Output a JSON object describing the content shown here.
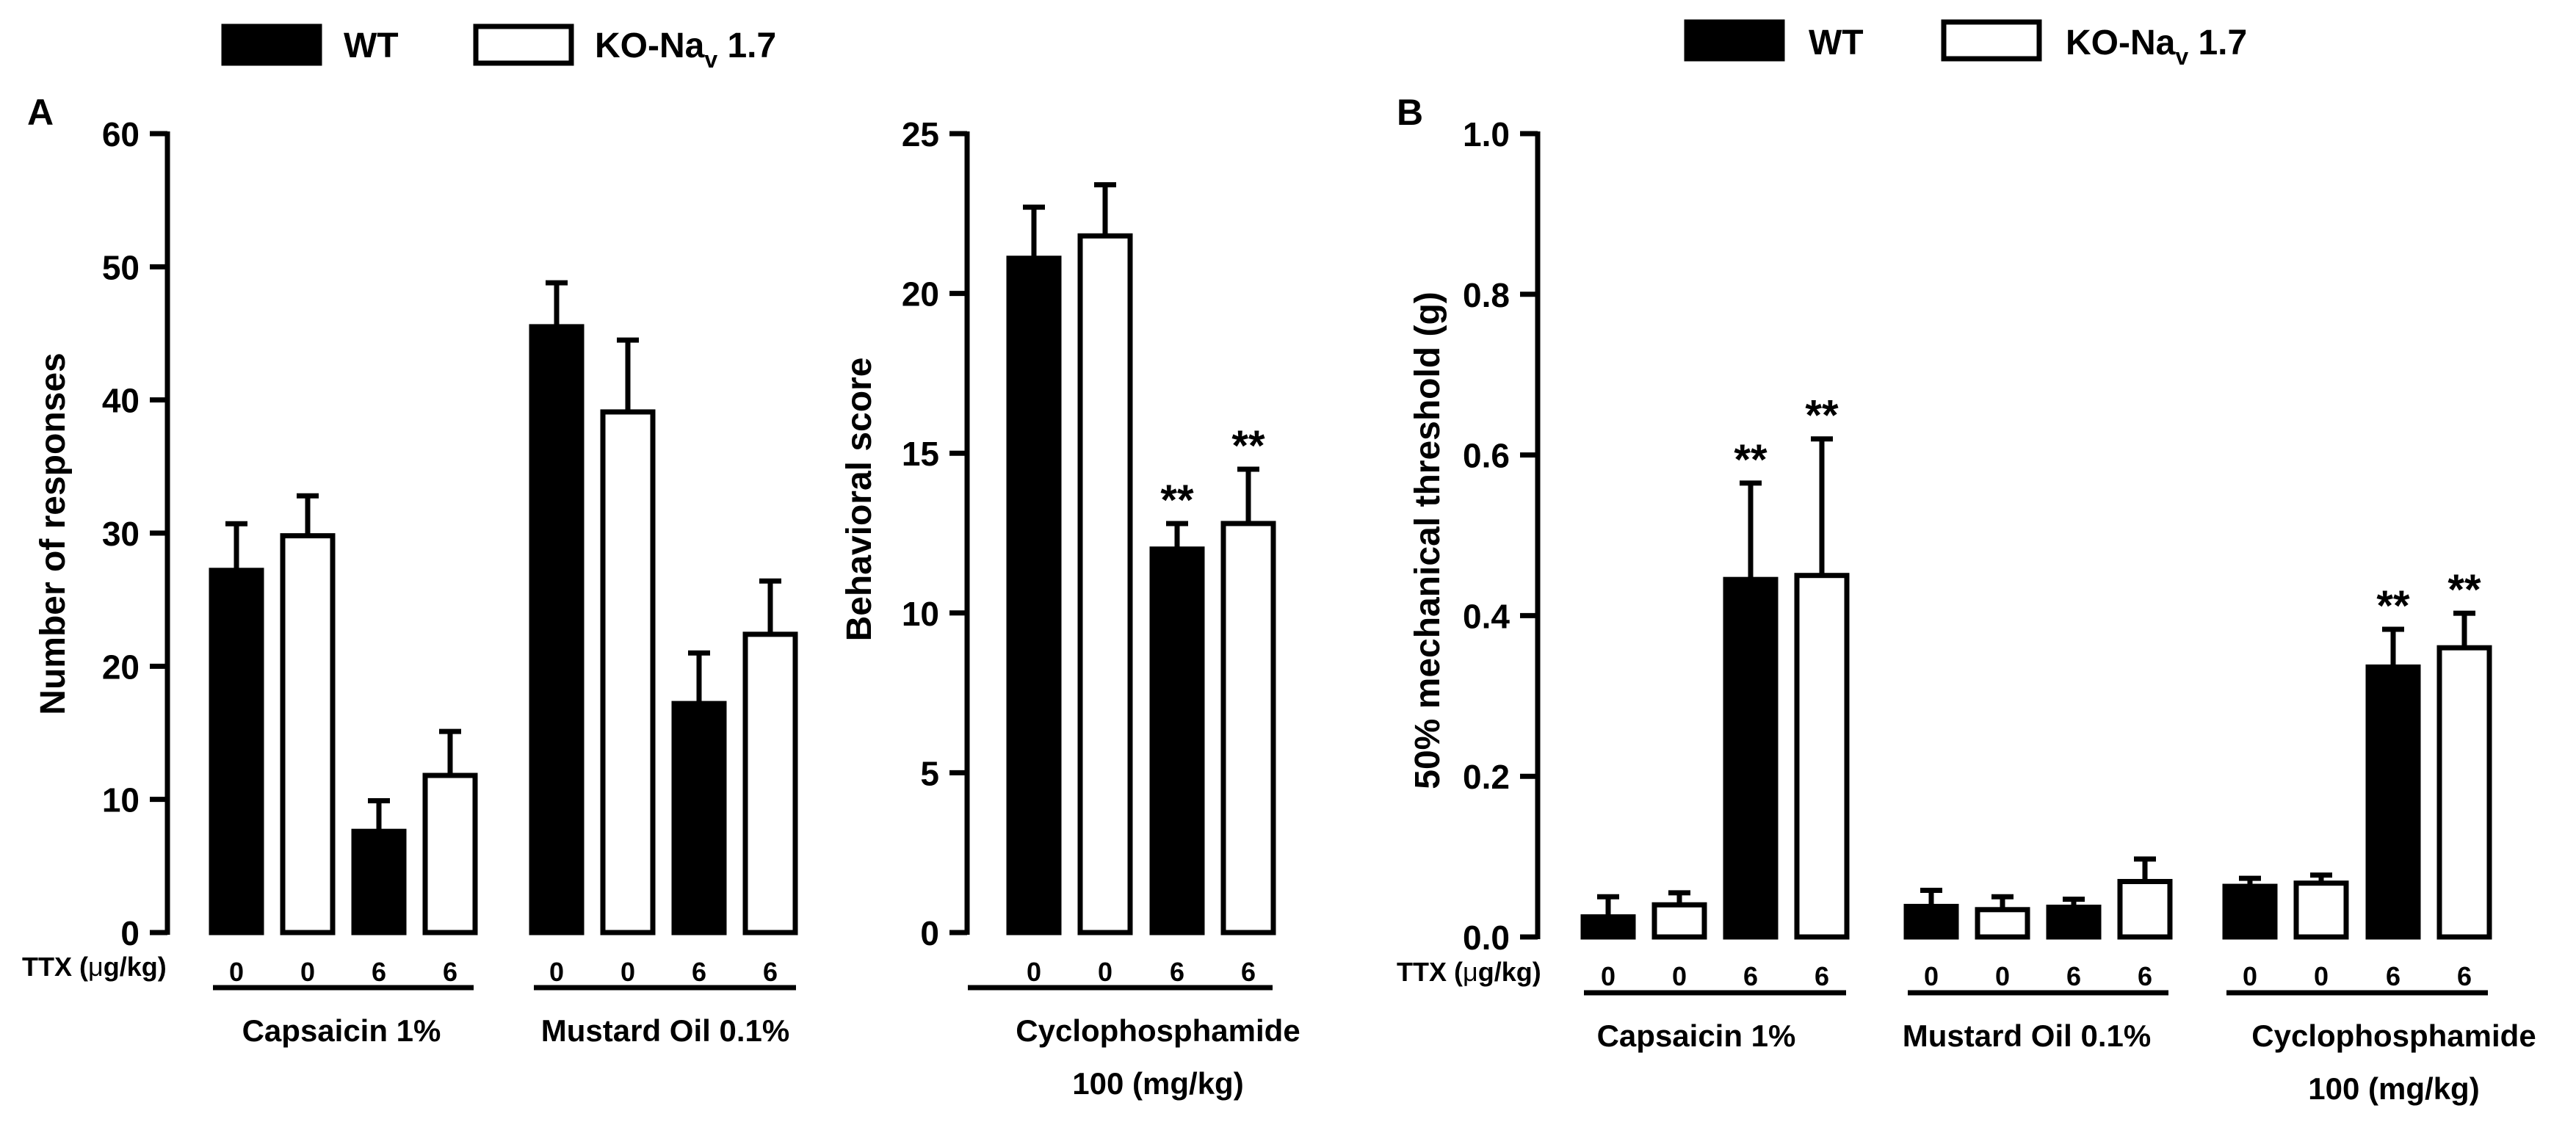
{
  "legend_items": [
    {
      "label": "WT",
      "fill": "#000000"
    },
    {
      "label": "KO-Na",
      "sub": "v",
      "rest": " 1.7",
      "fill": "#ffffff"
    }
  ],
  "ttx_prefix": "TTX (",
  "ttx_mu": "μ",
  "ttx_suffix": "g/kg)",
  "chart_data": [
    {
      "panel": "A",
      "type": "bar",
      "ylabel": "Number of responses",
      "ylim": [
        0,
        60
      ],
      "yticks": [
        0,
        10,
        20,
        30,
        40,
        50,
        60
      ],
      "groups": [
        {
          "label": [
            "Capsaicin 1%"
          ],
          "ttx": [
            "0",
            "0",
            "6",
            "6"
          ],
          "series": [
            "WT",
            "KO-Nav 1.7",
            "WT",
            "KO-Nav 1.7"
          ],
          "values": [
            27.2,
            29.8,
            7.6,
            11.8
          ],
          "errors": [
            3.5,
            3.0,
            2.3,
            3.3
          ],
          "sig": [
            "",
            "",
            "",
            ""
          ]
        },
        {
          "label": [
            "Mustard Oil 0.1%"
          ],
          "ttx": [
            "0",
            "0",
            "6",
            "6"
          ],
          "series": [
            "WT",
            "KO-Nav 1.7",
            "WT",
            "KO-Nav 1.7"
          ],
          "values": [
            45.5,
            39.1,
            17.2,
            22.4
          ],
          "errors": [
            3.3,
            5.4,
            3.8,
            4.0
          ],
          "sig": [
            "",
            "",
            "",
            ""
          ]
        }
      ]
    },
    {
      "panel": "",
      "type": "bar",
      "ylabel": "Behavioral score",
      "ylim": [
        0,
        25
      ],
      "yticks": [
        0,
        5,
        10,
        15,
        20,
        25
      ],
      "groups": [
        {
          "label": [
            "Cyclophosphamide",
            "100 (mg/kg)"
          ],
          "ttx": [
            "0",
            "0",
            "6",
            "6"
          ],
          "series": [
            "WT",
            "KO-Nav 1.7",
            "WT",
            "KO-Nav 1.7"
          ],
          "values": [
            21.1,
            21.8,
            12.0,
            12.8
          ],
          "errors": [
            1.6,
            1.6,
            0.8,
            1.7
          ],
          "sig": [
            "",
            "",
            "**",
            "**"
          ]
        }
      ]
    },
    {
      "panel": "B",
      "type": "bar",
      "ylabel": "50% mechanical threshold (g)",
      "ylim": [
        0,
        1.0
      ],
      "yticks": [
        "0.0",
        "0.2",
        "0.4",
        "0.6",
        "0.8",
        "1.0"
      ],
      "groups": [
        {
          "label": [
            "Capsaicin 1%"
          ],
          "ttx": [
            "0",
            "0",
            "6",
            "6"
          ],
          "series": [
            "WT",
            "KO-Nav 1.7",
            "WT",
            "KO-Nav 1.7"
          ],
          "values": [
            0.025,
            0.04,
            0.445,
            0.45
          ],
          "errors": [
            0.025,
            0.015,
            0.12,
            0.17
          ],
          "sig": [
            "",
            "",
            "**",
            "**"
          ]
        },
        {
          "label": [
            "Mustard Oil 0.1%"
          ],
          "ttx": [
            "0",
            "0",
            "6",
            "6"
          ],
          "series": [
            "WT",
            "KO-Nav 1.7",
            "WT",
            "KO-Nav 1.7"
          ],
          "values": [
            0.038,
            0.034,
            0.037,
            0.069
          ],
          "errors": [
            0.02,
            0.016,
            0.01,
            0.028
          ],
          "sig": [
            "",
            "",
            "",
            ""
          ]
        },
        {
          "label": [
            "Cyclophosphamide",
            "100 (mg/kg)"
          ],
          "ttx": [
            "0",
            "0",
            "6",
            "6"
          ],
          "series": [
            "WT",
            "KO-Nav 1.7",
            "WT",
            "KO-Nav 1.7"
          ],
          "values": [
            0.063,
            0.067,
            0.336,
            0.36
          ],
          "errors": [
            0.01,
            0.01,
            0.047,
            0.043
          ],
          "sig": [
            "",
            "",
            "**",
            "**"
          ]
        }
      ]
    }
  ]
}
